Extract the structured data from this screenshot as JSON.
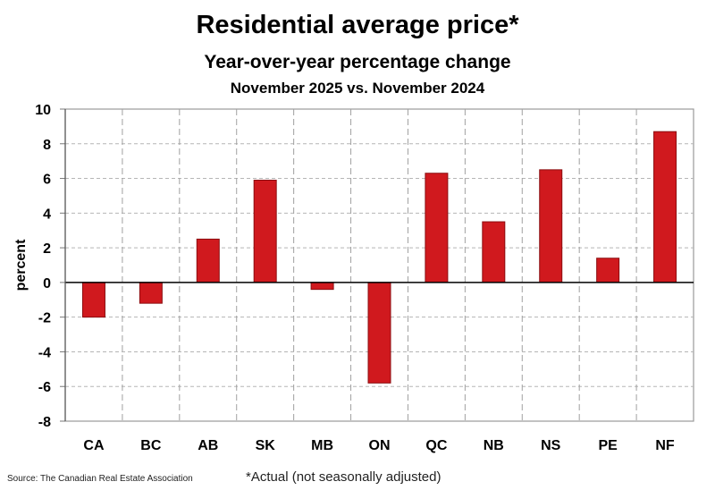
{
  "chart_data": {
    "type": "bar",
    "title": "Residential average price*",
    "subtitle": "Year-over-year percentage change",
    "subtitle2": "November 2025 vs. November 2024",
    "xlabel": "",
    "ylabel": "percent",
    "ylim": [
      -8,
      10
    ],
    "yticks": [
      10,
      8,
      6,
      4,
      2,
      0,
      -2,
      -4,
      -6,
      -8
    ],
    "grid": true,
    "categories": [
      "CA",
      "BC",
      "AB",
      "SK",
      "MB",
      "ON",
      "QC",
      "NB",
      "NS",
      "PE",
      "NF"
    ],
    "values": [
      -2.0,
      -1.2,
      2.5,
      5.9,
      -0.4,
      -5.8,
      6.3,
      3.5,
      6.5,
      1.4,
      8.7
    ],
    "bar_color": "#d0191e",
    "source": "Source: The Canadian Real Estate Association",
    "footnote": "*Actual (not seasonally adjusted)"
  }
}
